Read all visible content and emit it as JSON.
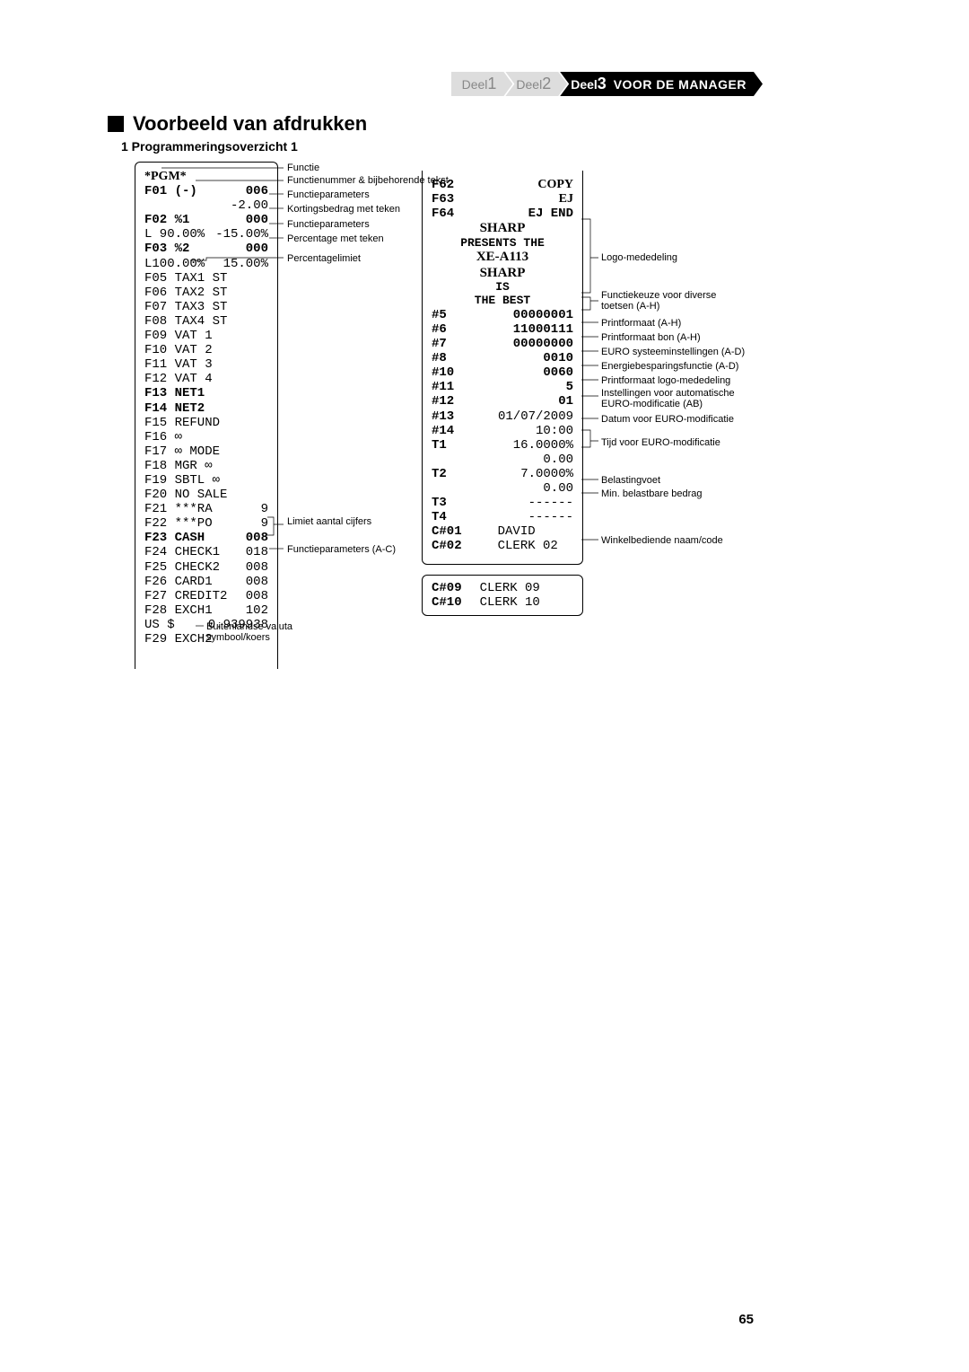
{
  "breadcrumb": {
    "seg1": {
      "prefix": "Deel",
      "num": "1"
    },
    "seg2": {
      "prefix": "Deel",
      "num": "2"
    },
    "seg3": {
      "prefix": "Deel",
      "num": "3",
      "label": "VOOR DE MANAGER"
    }
  },
  "title": "Voorbeeld van afdrukken",
  "subtitle": "1  Programmeringsoverzicht 1",
  "page_num": "65",
  "left_receipt": [
    {
      "l": "*PGM*",
      "r": "",
      "bold": true,
      "serif": true
    },
    {
      "l": "F01 (-)",
      "r": "006",
      "bold": true
    },
    {
      "l": "",
      "r": "-2.00"
    },
    {
      "l": "F02 %1",
      "r": "000",
      "bold": true
    },
    {
      "l": "L 90.00%",
      "r": "-15.00%"
    },
    {
      "l": "F03 %2",
      "r": "000",
      "bold": true
    },
    {
      "l": "L100.00%",
      "r": "15.00%"
    },
    {
      "l": "F05 TAX1 ST",
      "r": ""
    },
    {
      "l": "F06 TAX2 ST",
      "r": ""
    },
    {
      "l": "F07 TAX3 ST",
      "r": ""
    },
    {
      "l": "F08 TAX4 ST",
      "r": ""
    },
    {
      "l": "F09 VAT 1",
      "r": ""
    },
    {
      "l": "F10 VAT 2",
      "r": ""
    },
    {
      "l": "F11 VAT 3",
      "r": ""
    },
    {
      "l": "F12 VAT 4",
      "r": ""
    },
    {
      "l": "F13 NET1",
      "r": "",
      "bold": true
    },
    {
      "l": "F14 NET2",
      "r": "",
      "bold": true
    },
    {
      "l": "F15 REFUND",
      "r": ""
    },
    {
      "l": "F16 ∞",
      "r": ""
    },
    {
      "l": "F17 ∞ MODE",
      "r": ""
    },
    {
      "l": "F18 MGR ∞",
      "r": ""
    },
    {
      "l": "F19 SBTL ∞",
      "r": ""
    },
    {
      "l": "F20 NO SALE",
      "r": ""
    },
    {
      "l": "F21 ***RA",
      "r": "9"
    },
    {
      "l": "F22 ***PO",
      "r": "9"
    },
    {
      "l": "F23 CASH",
      "r": "008",
      "bold": true
    },
    {
      "l": "F24 CHECK1",
      "r": "018"
    },
    {
      "l": "F25 CHECK2",
      "r": "008"
    },
    {
      "l": "F26 CARD1",
      "r": "008"
    },
    {
      "l": "F27 CREDIT2",
      "r": "008"
    },
    {
      "l": "F28 EXCH1",
      "r": "102"
    },
    {
      "l": " US $",
      "r": "0.939938"
    },
    {
      "l": "F29 EXCH2",
      "r": ""
    }
  ],
  "annot_left": {
    "functie": "Functie",
    "fnum": "Functienummer & bijbehorende tekst",
    "fparam": "Functieparameters",
    "korting": "Kortingsbedrag met teken",
    "fparam2": "Functieparameters",
    "pct": "Percentage met teken",
    "pctlimit": "Percentagelimiet",
    "limiet": "Limiet aantal cijfers",
    "fparamac": "Functieparameters (A-C)",
    "fx": "Buitenlandse valuta\nsymbool/koers"
  },
  "right_receipt": {
    "header": [
      {
        "l": "F62",
        "r": "COPY",
        "bold": true,
        "serif": true
      },
      {
        "l": "F63",
        "r": "EJ",
        "bold": true,
        "serif": true
      },
      {
        "l": "F64",
        "r": "EJ END",
        "bold": true
      }
    ],
    "logo": [
      "SHARP",
      "PRESENTS THE",
      "XE-A113",
      "SHARP",
      "IS",
      "THE BEST"
    ],
    "items": [
      {
        "l": "#5",
        "r": "00000001",
        "bold": true
      },
      {
        "l": "#6",
        "r": "11000111",
        "bold": true
      },
      {
        "l": "#7",
        "r": "00000000",
        "bold": true
      },
      {
        "l": "#8",
        "r": "0010",
        "bold": true
      },
      {
        "l": "#10",
        "r": "0060",
        "bold": true
      },
      {
        "l": "#11",
        "r": "5",
        "bold": true
      },
      {
        "l": "#12",
        "r": "01",
        "bold": true
      },
      {
        "l": "#13",
        "r": "01/07/2009"
      },
      {
        "l": "#14",
        "r": "10:00"
      },
      {
        "l": "T1",
        "r": "16.0000%"
      },
      {
        "l": "",
        "r": "0.00"
      },
      {
        "l": "T2",
        "r": "7.0000%"
      },
      {
        "l": "",
        "r": "0.00"
      },
      {
        "l": "T3",
        "r": "------"
      },
      {
        "l": "T4",
        "r": "------"
      },
      {
        "l": "C#01",
        "r": "DAVID"
      },
      {
        "l": "C#02",
        "r": "CLERK 02"
      }
    ],
    "clerks2": [
      {
        "l": "C#09",
        "r": "CLERK 09"
      },
      {
        "l": "C#10",
        "r": "CLERK 10"
      }
    ]
  },
  "annot_right": {
    "logo": "Logo-mededeling",
    "fkeuze": "Functiekeuze voor diverse\ntoetsen (A-H)",
    "pf": "Printformaat (A-H)",
    "pfbon": "Printformaat bon (A-H)",
    "euro": "EURO systeeminstellingen (A-D)",
    "energie": "Energiebesparingsfunctie (A-D)",
    "pflogo": "Printformaat logo-mededeling",
    "instel": "Instellingen voor automatische\nEURO-modificatie (AB)",
    "datum": "Datum voor EURO-modificatie",
    "tijd": "Tijd voor EURO-modificatie",
    "belasting": "Belastingvoet",
    "minbel": "Min. belastbare bedrag",
    "winkel": "Winkelbediende naam/code"
  }
}
